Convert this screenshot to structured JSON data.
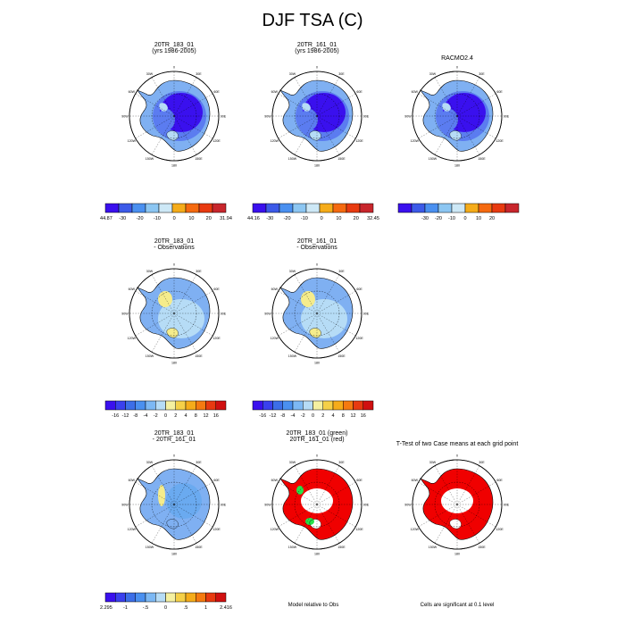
{
  "title": "DJF TSA (C)",
  "colors": {
    "land_cold": "#3a10ee",
    "land_mid": "#5b7cf0",
    "land_light": "#7fb0f2",
    "land_pale": "#b6dcf6",
    "diff_yellow": "#f5ec8c",
    "sig_red": "#f00000",
    "sig_green": "#27e04a",
    "coast": "#000000",
    "grid": "#000000"
  },
  "panels": [
    {
      "id": "p1",
      "title1": "20TR_183_01",
      "title2": "(yrs 1986-2005)",
      "kind": "abs",
      "colorbar": "cb_abs1"
    },
    {
      "id": "p2",
      "title1": "20TR_161_01",
      "title2": "(yrs 1986-2005)",
      "kind": "abs",
      "colorbar": "cb_abs2"
    },
    {
      "id": "p3",
      "title1": "RACMO2.4",
      "title2": "",
      "kind": "abs",
      "colorbar": "cb_abs3"
    },
    {
      "id": "p4",
      "title1": "20TR_183_01",
      "title2": "- Observations",
      "kind": "bias",
      "colorbar": "cb_bias1"
    },
    {
      "id": "p5",
      "title1": "20TR_161_01",
      "title2": "- Observations",
      "kind": "bias",
      "colorbar": "cb_bias2"
    },
    {
      "id": "p6",
      "title1": "20TR_183_01",
      "title2": "- 20TR_161_01",
      "kind": "diff",
      "colorbar": "cb_diff"
    },
    {
      "id": "p7",
      "title1": "20TR_183_01 (green)",
      "title2": "20TR_161_01 (red)",
      "kind": "sig2",
      "note": "Model relative to Obs"
    },
    {
      "id": "p8",
      "title1": "T-Test of two Case means at each grid point",
      "title2": "",
      "kind": "sig",
      "note": "Cells are significant at 0.1 level"
    }
  ],
  "map_labels": {
    "top": "0",
    "bottom": "180",
    "left": "90W",
    "right": "90E",
    "upper_left_1": "30W",
    "upper_left_2": "60W",
    "upper_right_1": "30E",
    "upper_right_2": "60E",
    "lower_left_1": "120W",
    "lower_left_2": "150W",
    "lower_right_1": "120E",
    "lower_right_2": "150E"
  },
  "chart_data": [
    {
      "type": "heatmap",
      "id": "cb_abs1",
      "colors": [
        "#3a10ee",
        "#3c5ae8",
        "#4a90f0",
        "#8cc6f2",
        "#cde8f6",
        "#f5ac1a",
        "#f56a10",
        "#e83a10",
        "#c8262c"
      ],
      "tick_labels": [
        "-44.87",
        "-30",
        "-20",
        "-10",
        "0",
        "10",
        "20",
        "31.94"
      ]
    },
    {
      "type": "heatmap",
      "id": "cb_abs2",
      "colors": [
        "#3a10ee",
        "#3c5ae8",
        "#4a90f0",
        "#8cc6f2",
        "#cde8f6",
        "#f5ac1a",
        "#f56a10",
        "#e83a10",
        "#c8262c"
      ],
      "tick_labels": [
        "-44.16",
        "-30",
        "-20",
        "-10",
        "0",
        "10",
        "20",
        "32.45"
      ]
    },
    {
      "type": "heatmap",
      "id": "cb_abs3",
      "colors": [
        "#3a10ee",
        "#3c5ae8",
        "#4a90f0",
        "#8cc6f2",
        "#cde8f6",
        "#f5ac1a",
        "#f56a10",
        "#e83a10",
        "#c8262c"
      ],
      "tick_labels": [
        "-30",
        "-20",
        "-10",
        "0",
        "10",
        "20"
      ]
    },
    {
      "type": "heatmap",
      "id": "cb_bias1",
      "colors": [
        "#3a10ee",
        "#3a40ee",
        "#3c6ee8",
        "#4a90f0",
        "#7cb8f4",
        "#b6dcf6",
        "#f5f0a0",
        "#f5d048",
        "#f5ac1a",
        "#f57a10",
        "#e83a10",
        "#d01010"
      ],
      "tick_labels": [
        "-16",
        "-12",
        "-8",
        "-4",
        "-2",
        "0",
        "2",
        "4",
        "8",
        "12",
        "16"
      ]
    },
    {
      "type": "heatmap",
      "id": "cb_bias2",
      "colors": [
        "#3a10ee",
        "#3a40ee",
        "#3c6ee8",
        "#4a90f0",
        "#7cb8f4",
        "#b6dcf6",
        "#f5f0a0",
        "#f5d048",
        "#f5ac1a",
        "#f57a10",
        "#e83a10",
        "#d01010"
      ],
      "tick_labels": [
        "-16",
        "-12",
        "-8",
        "-4",
        "-2",
        "0",
        "2",
        "4",
        "8",
        "12",
        "16"
      ]
    },
    {
      "type": "heatmap",
      "id": "cb_diff",
      "colors": [
        "#3a10ee",
        "#3a40ee",
        "#3c6ee8",
        "#4a90f0",
        "#7cb8f4",
        "#b6dcf6",
        "#f5f0a0",
        "#f5d048",
        "#f5ac1a",
        "#f57a10",
        "#e83a10",
        "#d01010"
      ],
      "tick_labels": [
        "-2.295",
        "-1",
        "-.5",
        "0",
        ".5",
        "1",
        "2.416"
      ]
    }
  ]
}
